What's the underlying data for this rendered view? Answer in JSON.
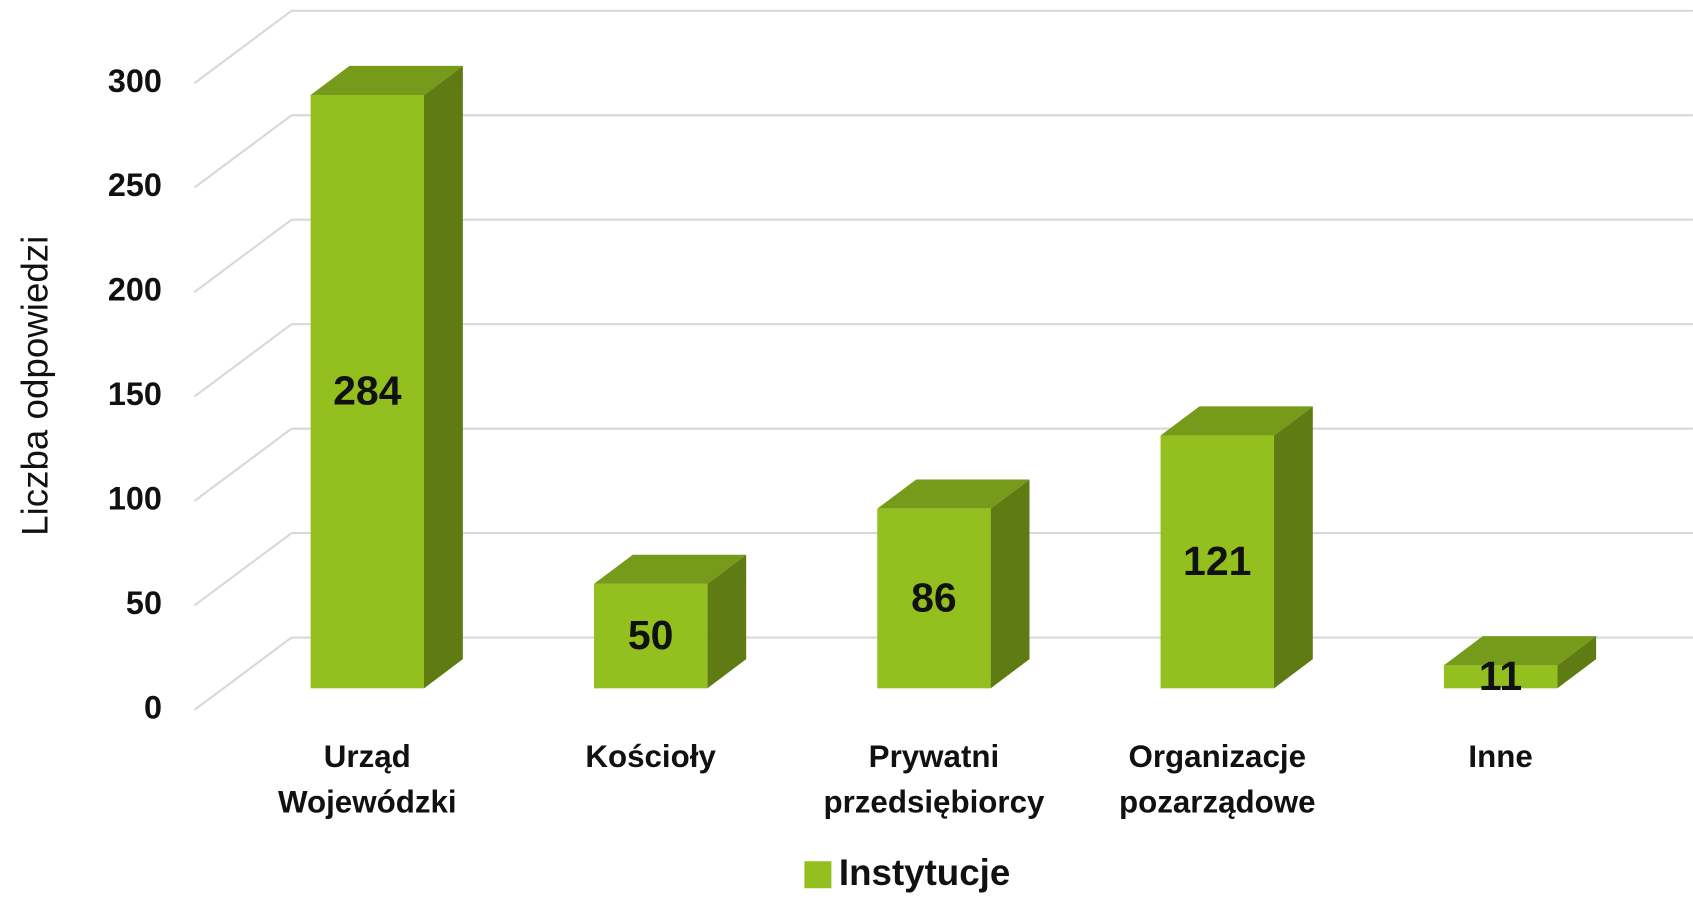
{
  "chart_data": {
    "type": "bar3d",
    "y_label": "Liczba odpowiedzi",
    "categories": [
      "Urząd Wojewódzki",
      "Kościoły",
      "Prywatni przedsiębiorcy",
      "Organizacje pozarządowe",
      "Inne"
    ],
    "series": [
      {
        "name": "Instytucje",
        "color": "#93c01f",
        "values": [
          284,
          50,
          86,
          121,
          11
        ]
      }
    ],
    "ylim": [
      0,
      300
    ],
    "yticks": [
      0,
      50,
      100,
      150,
      200,
      250,
      300
    ],
    "grid": true,
    "legend": "bottom"
  }
}
